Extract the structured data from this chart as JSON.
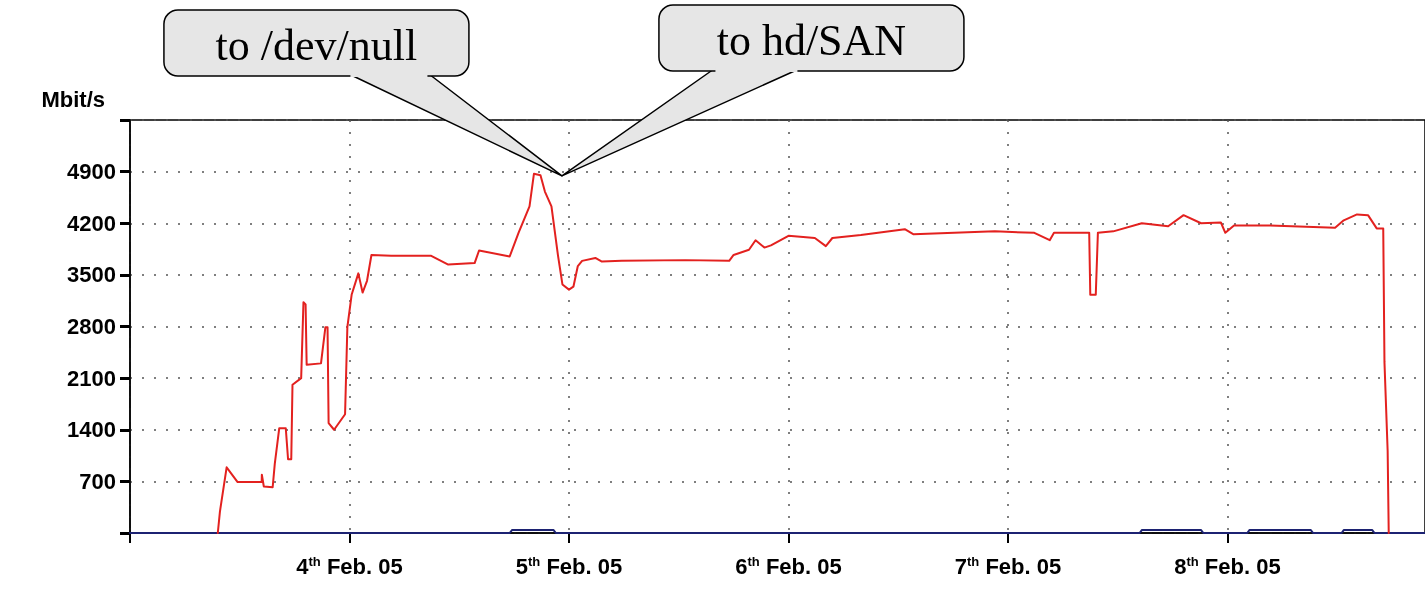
{
  "chart_data": {
    "type": "line",
    "ylabel": "Mbit/s",
    "annotations": [
      "to /dev/null",
      "to hd/SAN"
    ],
    "xlim": [
      "--02-03T00:00",
      "--02-08T21:36"
    ],
    "xticks": [
      {
        "value": "--02-03",
        "label": null
      },
      {
        "value": "--02-04",
        "label": "4$^{th}$ Feb. 05"
      },
      {
        "value": "--02-05",
        "label": "5$^{th}$ Feb. 05"
      },
      {
        "value": "--02-06",
        "label": "6$^{th}$ Feb. 05"
      },
      {
        "value": "--02-07",
        "label": "7$^{th}$ Feb. 05"
      },
      {
        "value": "--02-08",
        "label": "8$^{th}$ Feb. 05"
      }
    ],
    "ylim": [
      0,
      5600
    ],
    "yticks": [
      {
        "value": 0,
        "label": null
      },
      700,
      1400,
      2100,
      2800,
      3500,
      4200,
      4900,
      {
        "value": 5600,
        "label": null
      }
    ],
    "grid": true,
    "marker": "none",
    "line_style": "solid",
    "series": [
      {
        "color": "#1c2272",
        "x": [
          "--02-03T00:00",
          "--02-04T17:31",
          "--02-04T17:46",
          "--02-04T22:19",
          "--02-04T22:34",
          "--02-07T14:24",
          "--02-07T14:38",
          "--02-07T21:07",
          "--02-07T21:22",
          "--02-08T02:10",
          "--02-08T02:24",
          "--02-08T09:07",
          "--02-08T09:22",
          "--02-08T12:29",
          "--02-08T12:43",
          "--02-08T15:50",
          "--02-08T16:05",
          "--02-08T21:36"
        ],
        "values": [
          0,
          0,
          40,
          40,
          0,
          0,
          40,
          40,
          0,
          0,
          40,
          40,
          0,
          0,
          40,
          40,
          0,
          0
        ]
      },
      {
        "color": "#e3211f",
        "x": [
          "--02-03T09:36",
          "--02-03T09:50",
          "--02-03T10:34",
          "--02-03T11:46",
          "--02-03T14:24",
          "--02-03T14:25",
          "--02-03T14:38",
          "--02-03T15:36",
          "--02-03T15:50",
          "--02-03T16:19",
          "--02-03T17:02",
          "--02-03T17:17",
          "--02-03T17:38",
          "--02-03T17:46",
          "--02-03T18:43",
          "--02-03T18:58",
          "--02-03T19:12",
          "--02-03T19:19",
          "--02-03T20:53",
          "--02-03T21:22",
          "--02-03T21:36",
          "--02-03T21:43",
          "--02-03T22:19",
          "--02-03T23:31",
          "--02-03T23:46",
          "--02-04T00:14",
          "--02-04T00:58",
          "--02-04T01:26",
          "--02-04T01:55",
          "--02-04T02:24",
          "--02-04T04:34",
          "--02-04T08:53",
          "--02-04T10:48",
          "--02-04T13:41",
          "--02-04T14:10",
          "--02-04T17:31",
          "--02-04T18:29",
          "--02-04T19:41",
          "--02-04T20:10",
          "--02-04T20:53",
          "--02-04T21:22",
          "--02-04T22:05",
          "--02-04T22:48",
          "--02-04T23:17",
          "--02-05T00:00",
          "--02-05T00:29",
          "--02-05T00:58",
          "--02-05T01:26",
          "--02-05T02:53",
          "--02-05T03:36",
          "--02-05T05:46",
          "--02-05T12:43",
          "--02-05T17:31",
          "--02-05T18:00",
          "--02-05T19:41",
          "--02-05T20:24",
          "--02-05T21:22",
          "--02-05T22:05",
          "--02-06T00:00",
          "--02-06T02:53",
          "--02-06T04:05",
          "--02-06T04:48",
          "--02-06T07:55",
          "--02-06T12:43",
          "--02-06T13:41",
          "--02-06T22:34",
          "--02-07T02:53",
          "--02-07T04:34",
          "--02-07T05:02",
          "--02-07T08:53",
          "--02-07T09:00",
          "--02-07T09:36",
          "--02-07T09:50",
          "--02-07T11:31",
          "--02-07T14:38",
          "--02-07T17:31",
          "--02-07T19:12",
          "--02-07T21:07",
          "--02-07T23:17",
          "--02-07T23:46",
          "--02-08T00:43",
          "--02-08T04:34",
          "--02-08T11:46",
          "--02-08T12:43",
          "--02-08T14:10",
          "--02-08T15:22",
          "--02-08T16:19",
          "--02-08T17:02",
          "--02-08T17:10",
          "--02-08T17:31",
          "--02-08T17:38"
        ],
        "values": [
          0,
          290,
          890,
          690,
          690,
          790,
          630,
          620,
          940,
          1420,
          1420,
          1000,
          1000,
          2010,
          2100,
          3130,
          3100,
          2280,
          2300,
          2790,
          2790,
          1490,
          1400,
          1610,
          2790,
          3230,
          3520,
          3260,
          3420,
          3770,
          3760,
          3760,
          3640,
          3660,
          3830,
          3750,
          4070,
          4430,
          4870,
          4850,
          4630,
          4430,
          3760,
          3370,
          3300,
          3340,
          3620,
          3690,
          3730,
          3680,
          3690,
          3700,
          3690,
          3770,
          3840,
          3970,
          3870,
          3900,
          4030,
          4000,
          3890,
          4000,
          4040,
          4120,
          4050,
          4090,
          4070,
          3970,
          4070,
          4070,
          3230,
          3230,
          4070,
          4090,
          4200,
          4160,
          4310,
          4200,
          4210,
          4070,
          4170,
          4170,
          4140,
          4240,
          4320,
          4310,
          4130,
          4130,
          2320,
          1110,
          0
        ]
      }
    ]
  }
}
